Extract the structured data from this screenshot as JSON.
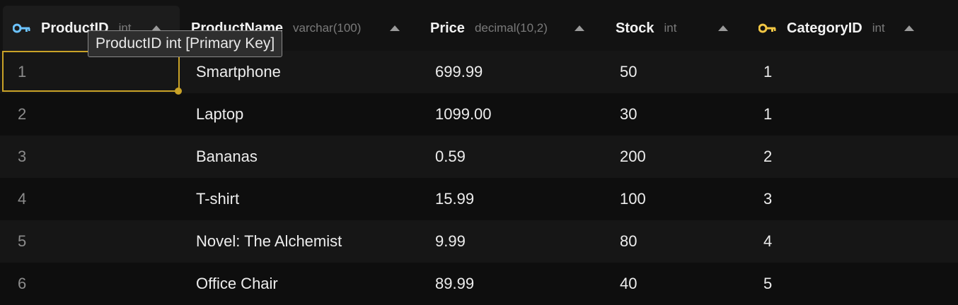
{
  "colors": {
    "primary_key_icon": "#6cc3ff",
    "foreign_key_icon": "#f2c744",
    "selection": "#c9a227"
  },
  "columns": [
    {
      "name": "ProductID",
      "type": "int",
      "icon": "primary-key-icon"
    },
    {
      "name": "ProductName",
      "type": "varchar(100)",
      "icon": null
    },
    {
      "name": "Price",
      "type": "decimal(10,2)",
      "icon": null
    },
    {
      "name": "Stock",
      "type": "int",
      "icon": null
    },
    {
      "name": "CategoryID",
      "type": "int",
      "icon": "foreign-key-icon"
    }
  ],
  "tooltip": "ProductID int [Primary Key]",
  "rows": [
    {
      "id": "1",
      "name": "Smartphone",
      "price": "699.99",
      "stock": "50",
      "category": "1"
    },
    {
      "id": "2",
      "name": "Laptop",
      "price": "1099.00",
      "stock": "30",
      "category": "1"
    },
    {
      "id": "3",
      "name": "Bananas",
      "price": "0.59",
      "stock": "200",
      "category": "2"
    },
    {
      "id": "4",
      "name": "T-shirt",
      "price": "15.99",
      "stock": "100",
      "category": "3"
    },
    {
      "id": "5",
      "name": "Novel: The Alchemist",
      "price": "9.99",
      "stock": "80",
      "category": "4"
    },
    {
      "id": "6",
      "name": "Office Chair",
      "price": "89.99",
      "stock": "40",
      "category": "5"
    }
  ]
}
